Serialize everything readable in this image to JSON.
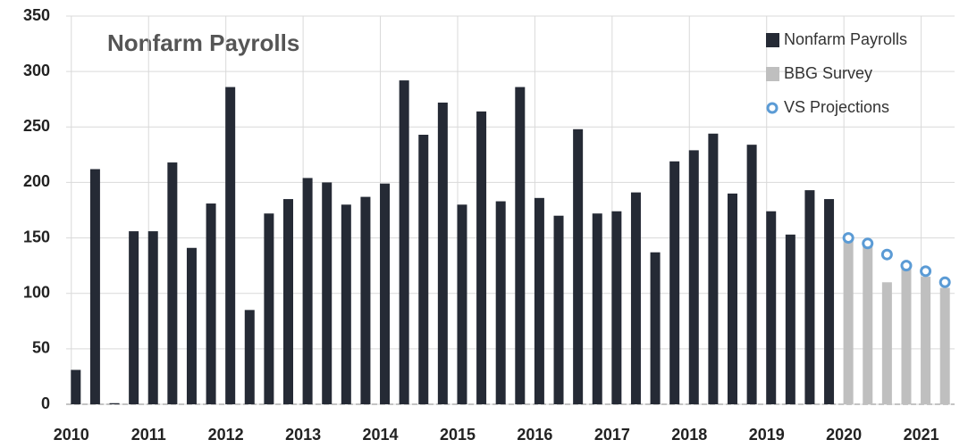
{
  "chart_data": {
    "type": "bar",
    "title": "Nonfarm Payrolls",
    "categories": [
      "2010",
      null,
      null,
      null,
      "2011",
      null,
      null,
      null,
      "2012",
      null,
      null,
      null,
      "2013",
      null,
      null,
      null,
      "2014",
      null,
      null,
      null,
      "2015",
      null,
      null,
      null,
      "2016",
      null,
      null,
      null,
      "2017",
      null,
      null,
      null,
      "2018",
      null,
      null,
      null,
      "2019",
      null,
      null,
      null,
      "2020",
      null,
      null,
      null,
      "2021",
      null
    ],
    "series": [
      {
        "name": "Nonfarm Payrolls",
        "color": "#252a35",
        "values": [
          31,
          212,
          1,
          156,
          156,
          218,
          141,
          181,
          286,
          85,
          172,
          185,
          204,
          200,
          180,
          187,
          199,
          292,
          243,
          272,
          180,
          264,
          183,
          286,
          186,
          170,
          248,
          172,
          174,
          191,
          137,
          219,
          229,
          244,
          190,
          234,
          174,
          153,
          193,
          185,
          null,
          null,
          null,
          null,
          null,
          null
        ]
      },
      {
        "name": "BBG Survey",
        "color": "#bfbfbf",
        "values": [
          null,
          null,
          null,
          null,
          null,
          null,
          null,
          null,
          null,
          null,
          null,
          null,
          null,
          null,
          null,
          null,
          null,
          null,
          null,
          null,
          null,
          null,
          null,
          null,
          null,
          null,
          null,
          null,
          null,
          null,
          null,
          null,
          null,
          null,
          null,
          null,
          null,
          null,
          null,
          null,
          150,
          145,
          110,
          125,
          115,
          105
        ]
      },
      {
        "name": "VS Projections",
        "color": "#5b9bd5",
        "type": "scatter",
        "values": [
          null,
          null,
          null,
          null,
          null,
          null,
          null,
          null,
          null,
          null,
          null,
          null,
          null,
          null,
          null,
          null,
          null,
          null,
          null,
          null,
          null,
          null,
          null,
          null,
          null,
          null,
          null,
          null,
          null,
          null,
          null,
          null,
          null,
          null,
          null,
          null,
          null,
          null,
          null,
          null,
          150,
          145,
          135,
          125,
          120,
          110
        ]
      }
    ],
    "ylim": [
      0,
      350
    ],
    "yticks": [
      0,
      50,
      100,
      150,
      200,
      250,
      300,
      350
    ],
    "grid": true,
    "legend": "upper right"
  }
}
